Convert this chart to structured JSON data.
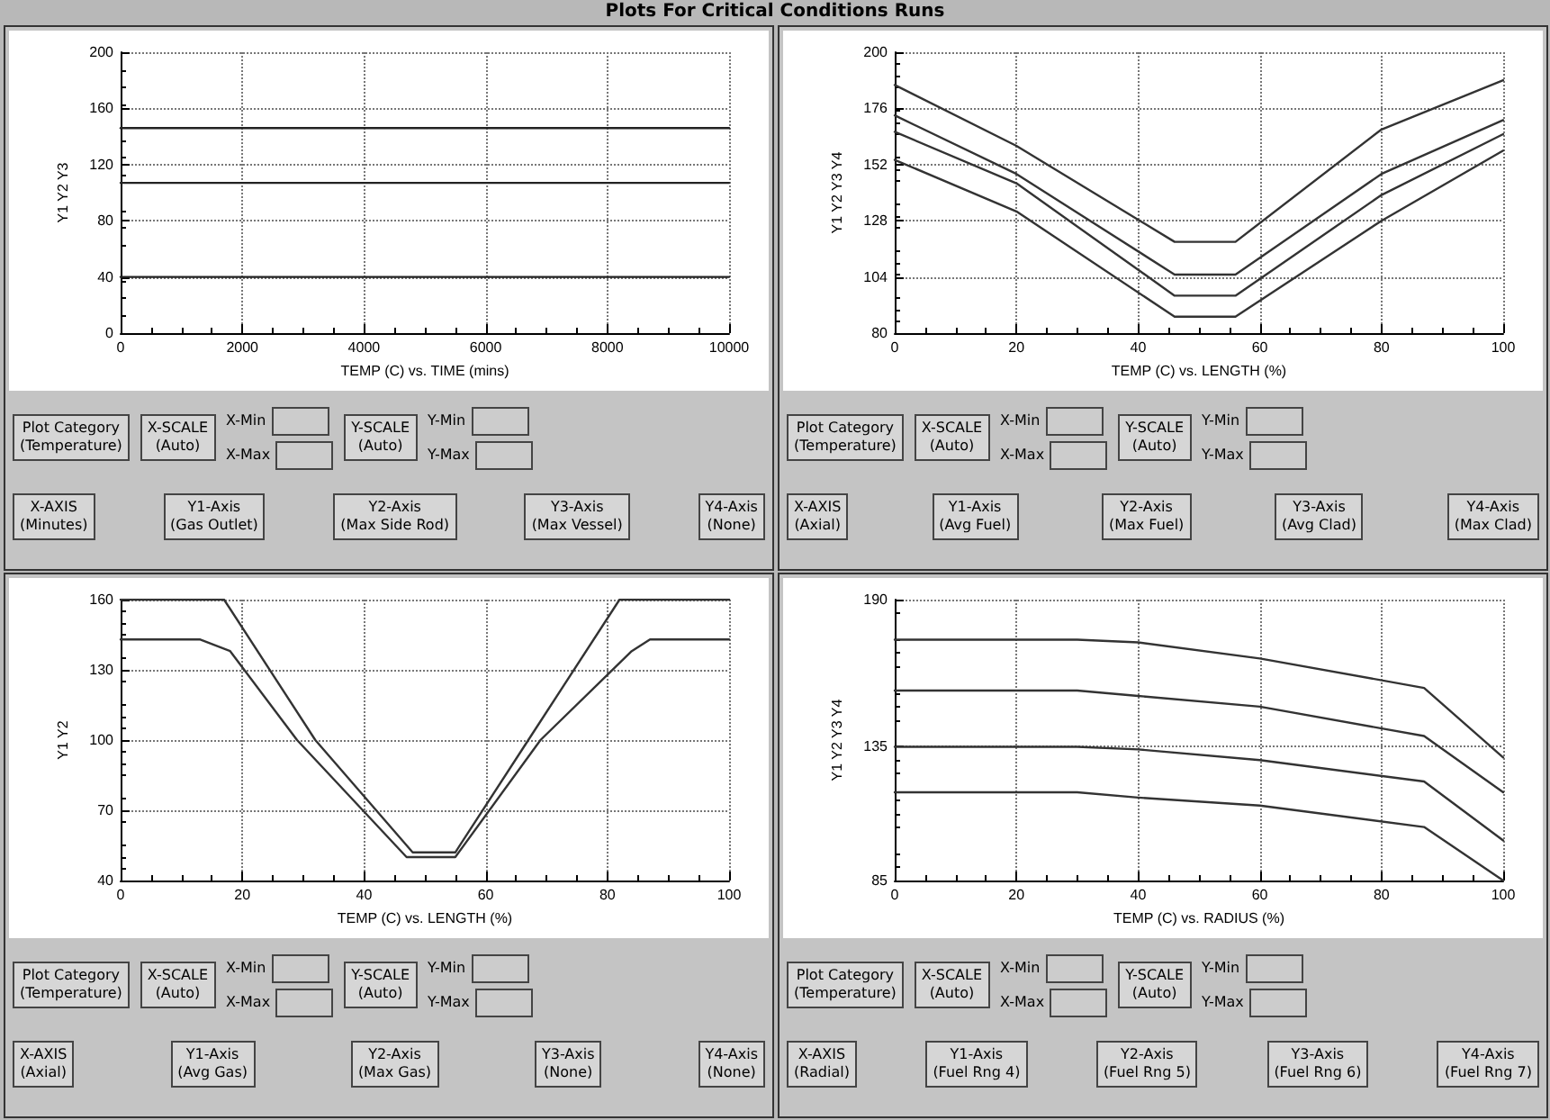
{
  "chart_data": [
    {
      "type": "line",
      "title": "Plots For Critical Conditions Runs",
      "xlabel": "TEMP (C) vs. TIME (mins)",
      "ylabel": "Y1 Y2 Y3",
      "xlim": [
        0,
        10000
      ],
      "xticks": [
        0,
        2000,
        4000,
        6000,
        8000,
        10000
      ],
      "ylim": [
        0,
        200
      ],
      "yticks": [
        0,
        40,
        80,
        120,
        160,
        200
      ],
      "grid": true,
      "marker": "none",
      "line_style": "solid",
      "x": [
        0,
        10000
      ],
      "series": [
        {
          "color": "#222222",
          "values": [
            146,
            146
          ]
        },
        {
          "color": "#222222",
          "values": [
            107,
            107
          ]
        },
        {
          "color": "#222222",
          "values": [
            40,
            40
          ]
        }
      ],
      "annotations": [
        "Plot Category\n(Temperature)",
        "X-SCALE\n(Auto)",
        "X-Min",
        "X-Max",
        "Y-SCALE\n(Auto)",
        "Y-Min",
        "Y-Max",
        "X-AXIS\n(Minutes)",
        "Y1-Axis\n(Gas Outlet)",
        "Y2-Axis\n(Max Side Rod)",
        "Y3-Axis\n(Max Vessel)",
        "Y4-Axis\n(None)"
      ]
    },
    {
      "type": "line",
      "xlabel": "TEMP (C) vs. LENGTH (%)",
      "ylabel": "Y1 Y2 Y3 Y4",
      "xlim": [
        0,
        100
      ],
      "xticks": [
        0,
        20,
        40,
        60,
        80,
        100
      ],
      "ylim": [
        80,
        200
      ],
      "yticks": [
        80,
        104,
        128,
        152,
        176,
        200
      ],
      "grid": true,
      "marker": "none",
      "line_style": "solid",
      "x": [
        0,
        20,
        46,
        56,
        80,
        100
      ],
      "series": [
        {
          "color": "#333333",
          "values": [
            186,
            160,
            119,
            119,
            167,
            188
          ]
        },
        {
          "color": "#333333",
          "values": [
            173,
            148,
            105,
            105,
            148,
            171
          ]
        },
        {
          "color": "#333333",
          "values": [
            166,
            144,
            96,
            96,
            139,
            165
          ]
        },
        {
          "color": "#333333",
          "values": [
            154,
            132,
            87,
            87,
            128,
            158
          ]
        }
      ],
      "annotations": [
        "Plot Category\n(Temperature)",
        "X-SCALE\n(Auto)",
        "X-Min",
        "X-Max",
        "Y-SCALE\n(Auto)",
        "Y-Min",
        "Y-Max",
        "X-AXIS\n(Axial)",
        "Y1-Axis\n(Avg Fuel)",
        "Y2-Axis\n(Max Fuel)",
        "Y3-Axis\n(Avg Clad)",
        "Y4-Axis\n(Max Clad)"
      ]
    },
    {
      "type": "line",
      "xlabel": "TEMP (C) vs. LENGTH (%)",
      "ylabel": "Y1 Y2",
      "xlim": [
        0,
        100
      ],
      "xticks": [
        0,
        20,
        40,
        60,
        80,
        100
      ],
      "ylim": [
        40,
        160
      ],
      "yticks": [
        40,
        70,
        100,
        130,
        160
      ],
      "grid": true,
      "marker": "none",
      "line_style": "solid",
      "series": [
        {
          "color": "#333333",
          "x": [
            0,
            13,
            18,
            29,
            47,
            55,
            69,
            84,
            87,
            100
          ],
          "values": [
            143,
            143,
            138,
            100,
            50,
            50,
            100,
            138,
            143,
            143
          ]
        },
        {
          "color": "#333333",
          "x": [
            0,
            17,
            32,
            48,
            55,
            67,
            82,
            100
          ],
          "values": [
            160,
            160,
            100,
            52,
            52,
            100,
            160,
            160
          ]
        }
      ],
      "annotations": [
        "Plot Category\n(Temperature)",
        "X-SCALE\n(Auto)",
        "X-Min",
        "X-Max",
        "Y-SCALE\n(Auto)",
        "Y-Min",
        "Y-Max",
        "X-AXIS\n(Axial)",
        "Y1-Axis\n(Avg Gas)",
        "Y2-Axis\n(Max Gas)",
        "Y3-Axis\n(None)",
        "Y4-Axis\n(None)"
      ]
    },
    {
      "type": "line",
      "xlabel": "TEMP (C) vs. RADIUS (%)",
      "ylabel": "Y1 Y2 Y3 Y4",
      "xlim": [
        0,
        100
      ],
      "xticks": [
        0,
        20,
        40,
        60,
        80,
        100
      ],
      "ylim": [
        85,
        190
      ],
      "yticks": [
        85,
        135,
        190
      ],
      "grid": true,
      "marker": "none",
      "line_style": "solid",
      "x": [
        0,
        30,
        40,
        60,
        87,
        100
      ],
      "series": [
        {
          "color": "#333333",
          "values": [
            175,
            175,
            174,
            168,
            157,
            131
          ]
        },
        {
          "color": "#333333",
          "values": [
            156,
            156,
            154,
            150,
            139,
            118
          ]
        },
        {
          "color": "#333333",
          "values": [
            135,
            135,
            134,
            130,
            122,
            100
          ]
        },
        {
          "color": "#333333",
          "values": [
            118,
            118,
            116,
            113,
            105,
            85
          ]
        }
      ],
      "annotations": [
        "Plot Category\n(Temperature)",
        "X-SCALE\n(Auto)",
        "X-Min",
        "X-Max",
        "Y-SCALE\n(Auto)",
        "Y-Min",
        "Y-Max",
        "X-AXIS\n(Radial)",
        "Y1-Axis\n(Fuel Rng 4)",
        "Y2-Axis\n(Fuel Rng 5)",
        "Y3-Axis\n(Fuel Rng 6)",
        "Y4-Axis\n(Fuel Rng 7)"
      ]
    }
  ]
}
